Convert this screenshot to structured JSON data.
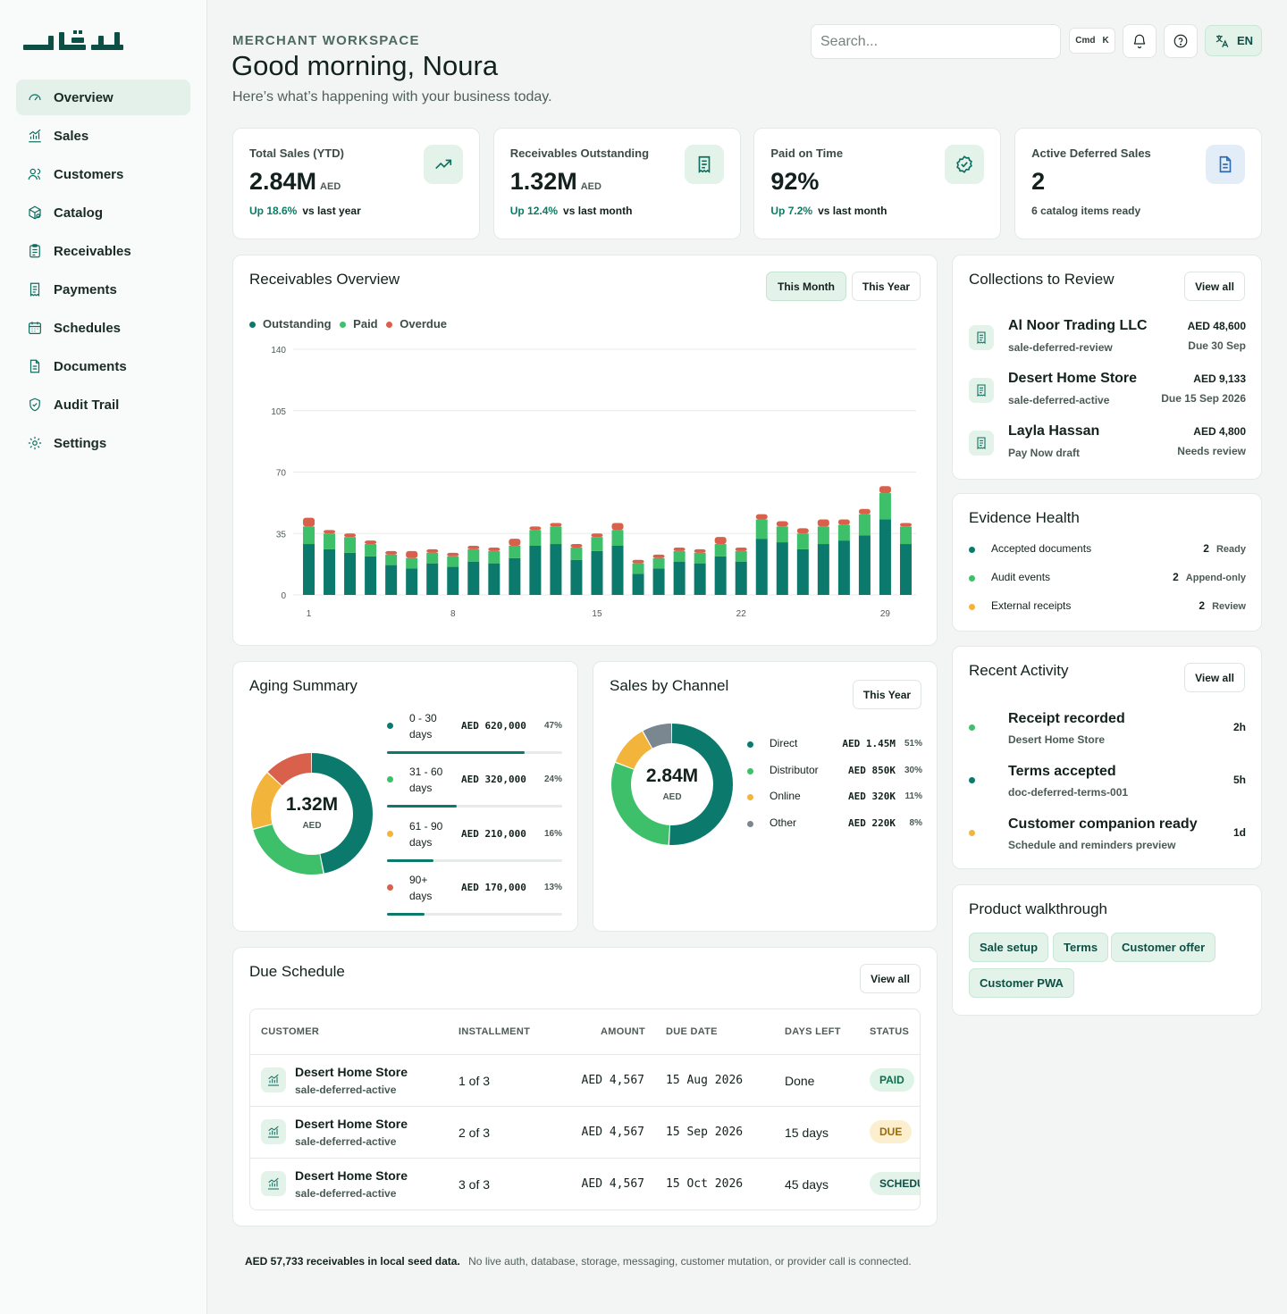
{
  "brand": {
    "logo_text": "عاقد"
  },
  "sidebar": {
    "items": [
      {
        "label": "Overview",
        "icon": "gauge-icon",
        "active": true
      },
      {
        "label": "Sales",
        "icon": "chart-icon"
      },
      {
        "label": "Customers",
        "icon": "users-icon"
      },
      {
        "label": "Catalog",
        "icon": "box-search-icon"
      },
      {
        "label": "Receivables",
        "icon": "clipboard-icon"
      },
      {
        "label": "Payments",
        "icon": "receipt-icon"
      },
      {
        "label": "Schedules",
        "icon": "calendar-icon"
      },
      {
        "label": "Documents",
        "icon": "document-icon"
      },
      {
        "label": "Audit Trail",
        "icon": "shield-check-icon"
      },
      {
        "label": "Settings",
        "icon": "gear-icon"
      }
    ]
  },
  "header": {
    "eyebrow": "MERCHANT WORKSPACE",
    "greeting": "Good morning, Noura",
    "subtitle": "Here’s what’s happening with your business today.",
    "search_placeholder": "Search...",
    "shortcut": {
      "mod": "Cmd",
      "key": "K"
    },
    "language": "EN"
  },
  "kpis": [
    {
      "label": "Total Sales (YTD)",
      "value": "2.84M",
      "unit": "AED",
      "delta": "Up 18.6%",
      "delta_suffix": "vs last year",
      "icon": "trending-up-icon"
    },
    {
      "label": "Receivables Outstanding",
      "value": "1.32M",
      "unit": "AED",
      "delta": "Up 12.4%",
      "delta_suffix": "vs last month",
      "icon": "receipt-icon"
    },
    {
      "label": "Paid on Time",
      "value": "92%",
      "unit": "",
      "delta": "Up 7.2%",
      "delta_suffix": "vs last month",
      "icon": "badge-check-icon"
    },
    {
      "label": "Active Deferred Sales",
      "value": "2",
      "unit": "",
      "delta": "",
      "delta_suffix": "6 catalog items ready",
      "icon": "document-icon"
    }
  ],
  "receivables": {
    "title": "Receivables Overview",
    "tabs": [
      "This Month",
      "This Year"
    ],
    "active_tab": "This Month",
    "legend": [
      "Outstanding",
      "Paid",
      "Overdue"
    ],
    "colors": {
      "outstanding": "#0b7a6c",
      "paid": "#3ec06a",
      "overdue": "#d9604a"
    }
  },
  "chart_data": {
    "type": "bar",
    "stacked": true,
    "x": [
      1,
      2,
      3,
      4,
      5,
      6,
      7,
      8,
      9,
      10,
      11,
      12,
      13,
      14,
      15,
      16,
      17,
      18,
      19,
      20,
      21,
      22,
      23,
      24,
      25,
      26,
      27,
      28,
      29,
      30
    ],
    "x_ticks": [
      "1",
      "8",
      "15",
      "22",
      "29"
    ],
    "ylim": [
      0,
      140
    ],
    "y_ticks": [
      0,
      35,
      70,
      105,
      140
    ],
    "series": [
      {
        "name": "Outstanding",
        "values": [
          29,
          26,
          24,
          22,
          17,
          15,
          18,
          16,
          19,
          18,
          21,
          28,
          29,
          20,
          25,
          28,
          12,
          15,
          19,
          18,
          22,
          19,
          32,
          30,
          26,
          29,
          31,
          34,
          43,
          29
        ]
      },
      {
        "name": "Paid",
        "values": [
          10,
          9,
          9,
          7,
          6,
          6,
          6,
          6,
          7,
          7,
          7,
          9,
          10,
          7,
          8,
          9,
          6,
          6,
          6,
          6,
          7,
          6,
          11,
          9,
          9,
          10,
          9,
          12,
          15,
          10
        ]
      },
      {
        "name": "Overdue",
        "values": [
          5,
          2,
          2,
          2,
          2,
          4,
          2,
          2,
          2,
          2,
          4,
          2,
          2,
          2,
          2,
          4,
          2,
          2,
          2,
          2,
          4,
          2,
          3,
          3,
          3,
          4,
          3,
          3,
          4,
          2
        ]
      }
    ]
  },
  "aging": {
    "title": "Aging Summary",
    "total": "1.32M",
    "unit": "AED",
    "buckets": [
      {
        "label": "0 - 30",
        "label2": "days",
        "amount": "AED 620,000",
        "pct": "47%",
        "value": 47,
        "color": "#0b7a6c"
      },
      {
        "label": "31 - 60",
        "label2": "days",
        "amount": "AED 320,000",
        "pct": "24%",
        "value": 24,
        "color": "#3ec06a"
      },
      {
        "label": "61 - 90",
        "label2": "days",
        "amount": "AED 210,000",
        "pct": "16%",
        "value": 16,
        "color": "#f2b43a"
      },
      {
        "label": "90+",
        "label2": "days",
        "amount": "AED 170,000",
        "pct": "13%",
        "value": 13,
        "color": "#d9604a"
      }
    ]
  },
  "channels": {
    "title": "Sales by Channel",
    "tab": "This Year",
    "total": "2.84M",
    "unit": "AED",
    "items": [
      {
        "label": "Direct",
        "amount": "AED 1.45M",
        "pct": "51%",
        "value": 51,
        "color": "#0b7a6c"
      },
      {
        "label": "Distributor",
        "amount": "AED 850K",
        "pct": "30%",
        "value": 30,
        "color": "#3ec06a"
      },
      {
        "label": "Online",
        "amount": "AED 320K",
        "pct": "11%",
        "value": 11,
        "color": "#f2b43a"
      },
      {
        "label": "Other",
        "amount": "AED 220K",
        "pct": "8%",
        "value": 8,
        "color": "#7a8791"
      }
    ]
  },
  "collections": {
    "title": "Collections to Review",
    "view_all": "View all",
    "items": [
      {
        "name": "Al Noor Trading LLC",
        "ref": "sale-deferred-review",
        "amount": "AED 48,600",
        "due": "Due 30 Sep"
      },
      {
        "name": "Desert Home Store",
        "ref": "sale-deferred-active",
        "amount": "AED 9,133",
        "due": "Due 15 Sep 2026"
      },
      {
        "name": "Layla Hassan",
        "ref": "Pay Now draft",
        "amount": "AED 4,800",
        "due": "Needs review"
      }
    ]
  },
  "evidence": {
    "title": "Evidence Health",
    "items": [
      {
        "label": "Accepted documents",
        "count": "2",
        "status": "Ready",
        "color": "#0b7a6c"
      },
      {
        "label": "Audit events",
        "count": "2",
        "status": "Append-only",
        "color": "#3ec06a"
      },
      {
        "label": "External receipts",
        "count": "2",
        "status": "Review",
        "color": "#f2b43a"
      }
    ]
  },
  "activity": {
    "title": "Recent Activity",
    "view_all": "View all",
    "items": [
      {
        "title": "Receipt recorded",
        "sub": "Desert Home Store",
        "time": "2h",
        "color": "#3ec06a"
      },
      {
        "title": "Terms accepted",
        "sub": "doc-deferred-terms-001",
        "time": "5h",
        "color": "#0b7a6c"
      },
      {
        "title": "Customer companion ready",
        "sub": "Schedule and reminders preview",
        "time": "1d",
        "color": "#f2b43a"
      }
    ]
  },
  "walkthrough": {
    "title": "Product walkthrough",
    "chips": [
      "Sale setup",
      "Terms",
      "Customer offer",
      "Customer PWA"
    ]
  },
  "due_schedule": {
    "title": "Due Schedule",
    "view_all": "View all",
    "columns": [
      "CUSTOMER",
      "INSTALLMENT",
      "AMOUNT",
      "DUE DATE",
      "DAYS LEFT",
      "STATUS"
    ],
    "rows": [
      {
        "customer": "Desert Home Store",
        "ref": "sale-deferred-active",
        "installment": "1 of 3",
        "amount": "AED 4,567",
        "due": "15 Aug 2026",
        "days": "Done",
        "status": "PAID"
      },
      {
        "customer": "Desert Home Store",
        "ref": "sale-deferred-active",
        "installment": "2 of 3",
        "amount": "AED 4,567",
        "due": "15 Sep 2026",
        "days": "15 days",
        "status": "DUE"
      },
      {
        "customer": "Desert Home Store",
        "ref": "sale-deferred-active",
        "installment": "3 of 3",
        "amount": "AED 4,567",
        "due": "15 Oct 2026",
        "days": "45 days",
        "status": "SCHEDU"
      }
    ]
  },
  "footer": {
    "strong": "AED 57,733 receivables in local seed data.",
    "note": "No live auth, database, storage, messaging, customer mutation, or provider call is connected."
  }
}
